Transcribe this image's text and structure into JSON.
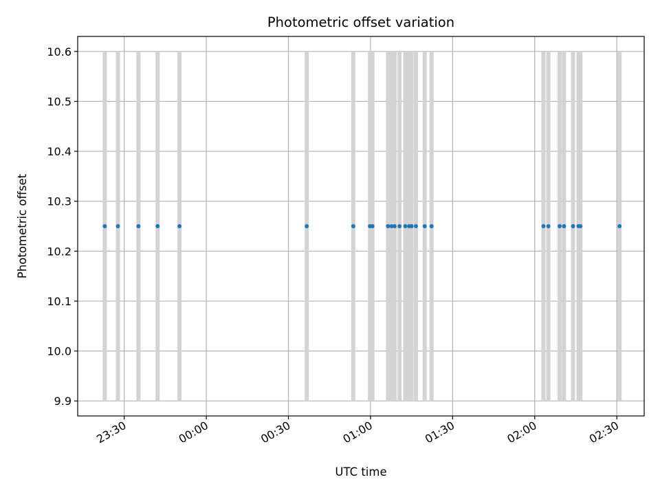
{
  "chart_data": {
    "type": "scatter",
    "title": "Photometric offset variation",
    "xlabel": "UTC time",
    "ylabel": "Photometric offset",
    "grid": true,
    "colors": {
      "points": "#1f77b4",
      "bands": "#d3d3d3",
      "grid": "#b0b0b0"
    },
    "x_axis": {
      "unit": "HH:MM (minutes relative to 00:00)",
      "range": [
        -47,
        160
      ],
      "ticks": [
        {
          "value": -30,
          "label": "23:30"
        },
        {
          "value": 0,
          "label": "00:00"
        },
        {
          "value": 30,
          "label": "00:30"
        },
        {
          "value": 60,
          "label": "01:00"
        },
        {
          "value": 90,
          "label": "01:30"
        },
        {
          "value": 120,
          "label": "02:00"
        },
        {
          "value": 150,
          "label": "02:30"
        }
      ]
    },
    "y_axis": {
      "range": [
        9.87,
        10.63
      ],
      "ticks": [
        "9.9",
        "10.0",
        "10.1",
        "10.2",
        "10.3",
        "10.4",
        "10.5",
        "10.6"
      ]
    },
    "band_range": [
      9.9,
      10.6
    ],
    "times": [
      -37.1,
      -32.3,
      -24.8,
      -17.8,
      -9.8,
      36.7,
      53.7,
      59.8,
      60.7,
      66.4,
      67.7,
      68.8,
      70.6,
      72.7,
      74.1,
      75.0,
      76.6,
      79.8,
      82.3,
      123.2,
      125.0,
      129.1,
      130.7,
      134.0,
      136.0,
      136.7,
      151.0
    ],
    "values": [
      10.25,
      10.25,
      10.25,
      10.25,
      10.25,
      10.25,
      10.25,
      10.25,
      10.25,
      10.25,
      10.25,
      10.25,
      10.25,
      10.25,
      10.25,
      10.25,
      10.25,
      10.25,
      10.25,
      10.25,
      10.25,
      10.25,
      10.25,
      10.25,
      10.25,
      10.25,
      10.25
    ]
  }
}
